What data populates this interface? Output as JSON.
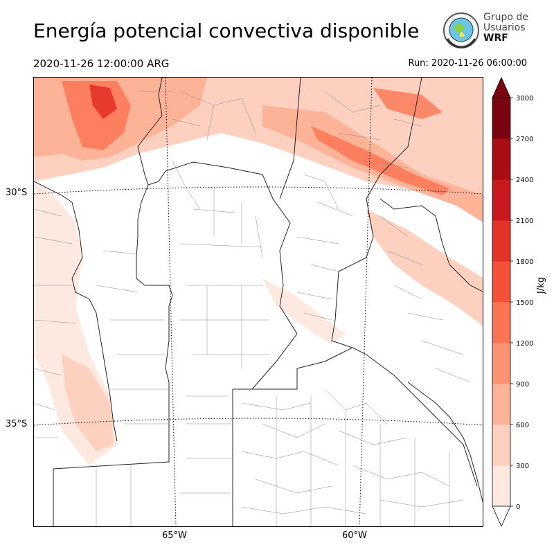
{
  "header": {
    "title": "Energía potencial convectiva disponible",
    "valid_time": "2020-11-26 12:00:00 ARG",
    "run_time": "Run: 2020-11-26 06:00:00"
  },
  "logo": {
    "line1": "Grupo de",
    "line2": "Usuarios",
    "line3": "WRF"
  },
  "map": {
    "lat_labels": [
      "30°S",
      "35°S"
    ],
    "lon_labels": [
      "65°W",
      "60°W"
    ],
    "field": "CAPE"
  },
  "colorbar": {
    "unit": "J/kg",
    "ticks": [
      "0",
      "300",
      "600",
      "900",
      "1200",
      "1500",
      "1800",
      "2100",
      "2400",
      "2700",
      "3000"
    ],
    "colors": [
      "#fee9e0",
      "#fdd0bf",
      "#fcb398",
      "#fc9474",
      "#fb7555",
      "#f4503a",
      "#e53228",
      "#c9191e",
      "#a90e15",
      "#7a0510"
    ]
  }
}
